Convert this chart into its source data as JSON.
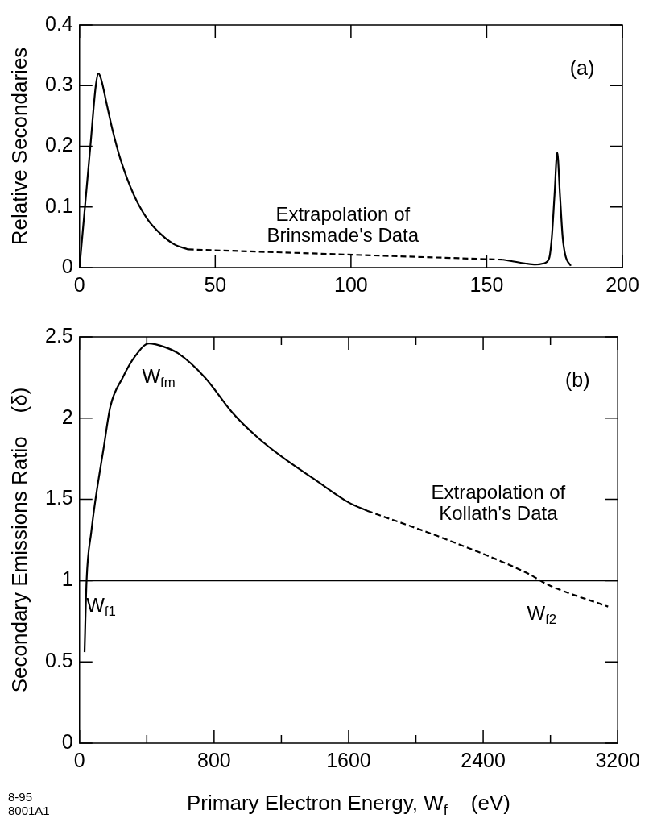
{
  "chart_data": [
    {
      "type": "line",
      "ylabel": "Relative Secondaries",
      "xlim": [
        0,
        200
      ],
      "ylim": [
        0,
        0.4
      ],
      "xticks": [
        0,
        50,
        100,
        150,
        200
      ],
      "yticks": [
        0,
        0.1,
        0.2,
        0.3,
        0.4
      ],
      "marker": "none",
      "legend": false,
      "series": [
        {
          "color": "#000000",
          "line_style": "solid",
          "x": [
            0,
            2,
            4,
            6,
            7,
            8,
            10,
            12,
            15,
            20,
            25,
            30,
            35,
            40
          ],
          "values": [
            0,
            0.1,
            0.2,
            0.3,
            0.32,
            0.31,
            0.27,
            0.23,
            0.18,
            0.12,
            0.08,
            0.055,
            0.038,
            0.03
          ]
        },
        {
          "color": "#000000",
          "line_style": "dashed",
          "x": [
            40,
            156
          ],
          "values": [
            0.03,
            0.013
          ]
        },
        {
          "color": "#000000",
          "line_style": "solid",
          "x": [
            156,
            160,
            164,
            168,
            171,
            173,
            174,
            175,
            176,
            177,
            178,
            179,
            181
          ],
          "values": [
            0.013,
            0.01,
            0.007,
            0.005,
            0.007,
            0.015,
            0.05,
            0.12,
            0.19,
            0.12,
            0.05,
            0.02,
            0.003
          ]
        }
      ],
      "annotations": [
        "(a)",
        {
          "text": "Extrapolation of\nBrinsmade's Data",
          "x": 97,
          "y": 0.022
        }
      ]
    },
    {
      "type": "line",
      "ylabel": "Secondary Emissions Ratio    (δ)",
      "xlabel": "Primary Electron Energy, W$_{f}$    (eV)",
      "xlim": [
        0,
        3200
      ],
      "ylim": [
        0,
        2.5
      ],
      "xticks": [
        0,
        {
          "value": 400,
          "label": null
        },
        800,
        {
          "value": 1200,
          "label": null
        },
        1600,
        {
          "value": 2000,
          "label": null
        },
        2400,
        {
          "value": 2800,
          "label": null
        },
        3200
      ],
      "yticks": [
        0,
        0.5,
        1.0,
        1.5,
        2.0,
        2.5
      ],
      "marker": "none",
      "legend": false,
      "series": [
        {
          "color": "#000000",
          "line_style": "solid",
          "x": [
            30,
            42,
            70,
            95,
            144,
            183,
            257,
            330,
            413,
            500,
            585,
            746,
            912,
            1060,
            1206,
            1402,
            1602,
            1710
          ],
          "values": [
            0.56,
            1.0,
            1.3,
            1.5,
            1.82,
            2.07,
            2.25,
            2.38,
            2.46,
            2.44,
            2.4,
            2.25,
            2.03,
            1.88,
            1.76,
            1.62,
            1.48,
            1.43
          ]
        },
        {
          "color": "#000000",
          "line_style": "dashed",
          "x": [
            1710,
            2165,
            2654,
            2796,
            3143
          ],
          "values": [
            1.43,
            1.26,
            1.05,
            0.97,
            0.84
          ]
        }
      ],
      "ref_lines": [
        {
          "axis": "y",
          "value": 1.0,
          "color": "#000000",
          "line_style": "solid"
        }
      ],
      "annotations": [
        "(b)",
        {
          "text": "W$_{fm}$",
          "x": 413,
          "y": 2.45
        },
        {
          "text": "W$_{f1}$",
          "x": 42,
          "y": 1.0
        },
        {
          "text": "Extrapolation of\nKollath's Data",
          "x": 2490,
          "y": 1.14
        },
        {
          "text": "W$_{f2}$",
          "x": 2796,
          "y": 0.97
        },
        "8-95\n8001A1"
      ]
    }
  ]
}
